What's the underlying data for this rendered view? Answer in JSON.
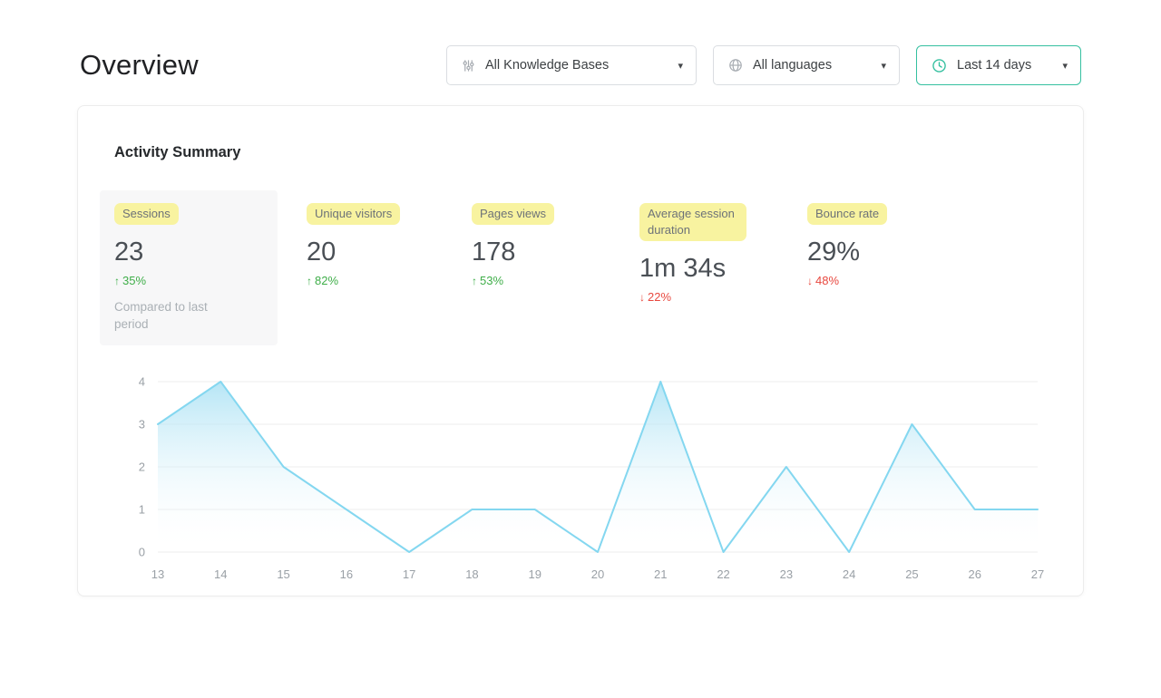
{
  "page": {
    "title": "Overview"
  },
  "filters": {
    "knowledge_bases": {
      "value": "All Knowledge Bases"
    },
    "languages": {
      "value": "All languages"
    },
    "date_range": {
      "value": "Last 14 days"
    }
  },
  "card": {
    "title": "Activity Summary",
    "metrics": [
      {
        "label": "Sessions",
        "value": "23",
        "arrow": "↑",
        "change": "35%",
        "direction": "up",
        "note": "Compared to last period"
      },
      {
        "label": "Unique visitors",
        "value": "20",
        "arrow": "↑",
        "change": "82%",
        "direction": "up"
      },
      {
        "label": "Pages views",
        "value": "178",
        "arrow": "↑",
        "change": "53%",
        "direction": "up"
      },
      {
        "label": "Average session duration",
        "value": "1m 34s",
        "arrow": "↓",
        "change": "22%",
        "direction": "down"
      },
      {
        "label": "Bounce rate",
        "value": "29%",
        "arrow": "↓",
        "change": "48%",
        "direction": "down"
      }
    ]
  },
  "chart_data": {
    "type": "area",
    "x": [
      "13",
      "14",
      "15",
      "16",
      "17",
      "18",
      "19",
      "20",
      "21",
      "22",
      "23",
      "24",
      "25",
      "26",
      "27"
    ],
    "values": [
      3,
      4,
      2,
      1,
      0,
      1,
      1,
      0,
      4,
      0,
      2,
      0,
      3,
      1,
      1
    ],
    "ylim": [
      0,
      4
    ],
    "yticks": [
      0,
      1,
      2,
      3,
      4
    ],
    "grid": true,
    "legend": "none",
    "title": "",
    "xlabel": "",
    "ylabel": "",
    "line_color": "#84d7f0",
    "fill_top": "#a9e1f4",
    "fill_bottom": "#ffffff"
  },
  "colors": {
    "positive": "#3fae49",
    "negative": "#e8483f",
    "highlight": "#f8f3a0",
    "accent_border": "#35c0a0",
    "grid": "#ececec",
    "tick_text": "#9aa0a6"
  }
}
